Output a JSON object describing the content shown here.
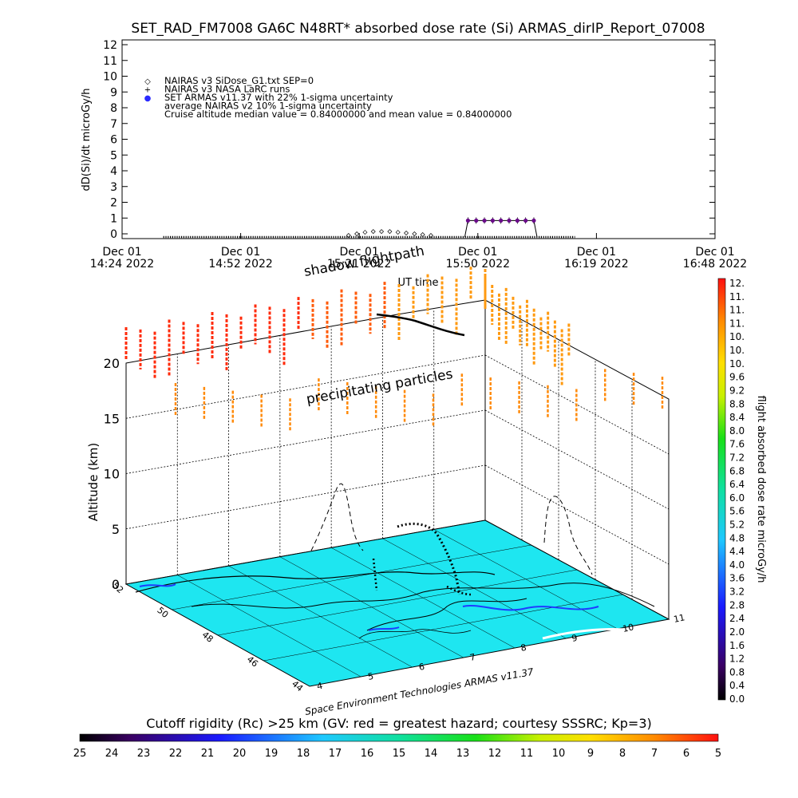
{
  "title": "SET_RAD_FM7008  GA6C N48RT* absorbed dose rate (Si) ARMAS_dirIP_Report_07008",
  "top_panel": {
    "ylabel": "dD(Si)/dt microGy/h",
    "xlabel": "UT time",
    "yticks": [
      "0",
      "1",
      "2",
      "3",
      "4",
      "5",
      "6",
      "7",
      "8",
      "9",
      "10",
      "11",
      "12"
    ],
    "xticks": [
      {
        "day": "Dec 01",
        "time": "14:24 2022"
      },
      {
        "day": "Dec 01",
        "time": "14:52 2022"
      },
      {
        "day": "Dec 01",
        "time": "15:21 2022"
      },
      {
        "day": "Dec 01",
        "time": "15:50 2022"
      },
      {
        "day": "Dec 01",
        "time": "16:19 2022"
      },
      {
        "day": "Dec 01",
        "time": "16:48 2022"
      }
    ],
    "legend": [
      {
        "symbol": "◇",
        "text": "NAIRAS v3 SiDose_G1.txt SEP=0"
      },
      {
        "symbol": "+",
        "text": "NAIRAS v3 NASA LaRC runs"
      },
      {
        "symbol": "●",
        "text": "SET ARMAS v11.37 with 22% 1-sigma uncertainty"
      },
      {
        "symbol": "",
        "text": "average NAIRAS v2 10% 1-sigma uncertainty"
      },
      {
        "symbol": "",
        "text": "Cruise altitude median value = 0.84000000 and mean value = 0.84000000"
      }
    ],
    "colors": {
      "nairas": "#000000",
      "armas": "#2a2aff",
      "armas_line": "#6a0a8a"
    }
  },
  "chart_data": [
    {
      "type": "scatter",
      "title": "SET_RAD_FM7008  GA6C N48RT* absorbed dose rate (Si) ARMAS_dirIP_Report_07008",
      "xlabel": "UT time",
      "ylabel": "dD(Si)/dt microGy/h",
      "ylim": [
        0,
        12
      ],
      "x_unit": "minutes after 14:24 UT (Dec 01 2022)",
      "xlim": [
        0,
        144
      ],
      "series": [
        {
          "name": "NAIRAS v3 SiDose_G1.txt SEP=0",
          "x": [
            10,
            110
          ],
          "y": [
            0,
            0
          ]
        },
        {
          "name": "NAIRAS v3 SiDose_G1.txt SEP=0 (elevated)",
          "x": [
            55,
            57,
            59,
            61,
            63,
            65,
            67,
            69,
            71,
            73,
            75
          ],
          "y": [
            0.05,
            0.15,
            0.25,
            0.3,
            0.3,
            0.3,
            0.25,
            0.2,
            0.15,
            0.1,
            0.05
          ]
        },
        {
          "name": "SET ARMAS v11.37 with 22% 1-sigma uncertainty",
          "x": [
            84,
            86,
            88,
            90,
            92,
            94,
            96,
            98,
            100
          ],
          "y": [
            0.84,
            0.84,
            0.84,
            0.84,
            0.84,
            0.84,
            0.84,
            0.84,
            0.84
          ]
        }
      ]
    },
    {
      "type": "scatter",
      "xlabel": "",
      "ylabel": "Altitude (km)",
      "zlim": [
        0,
        20
      ],
      "zticks": [
        "0",
        "5",
        "10",
        "15",
        "20"
      ],
      "longitude_ticks": [
        "4",
        "5",
        "6",
        "7",
        "8",
        "9",
        "10",
        "11"
      ],
      "latitude_ticks": [
        "44",
        "46",
        "48",
        "50",
        "52"
      ],
      "flightpath_altitude_km": [
        0.5,
        2,
        5,
        8,
        10,
        10,
        10,
        9,
        4,
        1,
        0.5
      ]
    }
  ],
  "scene": {
    "label_flightpath": "shadow flightpath",
    "label_particles": "precipitating particles",
    "credit": "Space Environment Technologies ARMAS v11.37",
    "ylabel": "Altitude (km)",
    "ground_color": "#1ee6f0",
    "coast_color": "#000000",
    "lake_color": "#1f3cff"
  },
  "colorbar_right": {
    "label": "flight absorbed dose rate microGy/h",
    "ticks": [
      "12.",
      "11.",
      "11.",
      "11.",
      "10.",
      "10.",
      "10.",
      "9.6",
      "9.2",
      "8.8",
      "8.4",
      "8.0",
      "7.6",
      "7.2",
      "6.8",
      "6.4",
      "6.0",
      "5.6",
      "5.2",
      "4.8",
      "4.4",
      "4.0",
      "3.6",
      "3.2",
      "2.8",
      "2.4",
      "2.0",
      "1.6",
      "1.2",
      "0.8",
      "0.4",
      "0.0"
    ]
  },
  "colorbar_bottom": {
    "label": "Cutoff rigidity (Rc) >25 km (GV: red = greatest hazard; courtesy SSSRC; Kp=3)",
    "ticks": [
      "25",
      "24",
      "23",
      "22",
      "21",
      "20",
      "19",
      "18",
      "17",
      "16",
      "15",
      "14",
      "13",
      "12",
      "11",
      "10",
      "9",
      "8",
      "7",
      "6",
      "5"
    ]
  }
}
